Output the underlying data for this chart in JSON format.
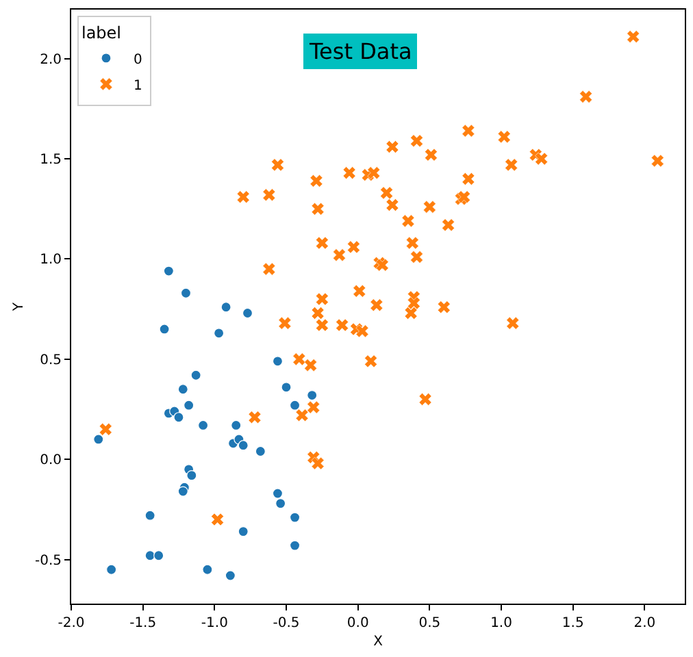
{
  "chart_data": {
    "type": "scatter",
    "title": "Test Data",
    "xlabel": "X",
    "ylabel": "Y",
    "legend_title": "label",
    "legend": "top left",
    "xlim": [
      -2.0,
      2.28
    ],
    "ylim": [
      -0.72,
      2.245
    ],
    "xticks": [
      {
        "value": -2,
        "label": "-2.0"
      },
      {
        "value": -1.5,
        "label": "-1.5"
      },
      {
        "value": -1,
        "label": "-1.0"
      },
      {
        "value": -0.5,
        "label": "-0.5"
      },
      {
        "value": 0,
        "label": "0.0"
      },
      {
        "value": 0.5,
        "label": "0.5"
      },
      {
        "value": 1,
        "label": "1.0"
      },
      {
        "value": 1.5,
        "label": "1.5"
      },
      {
        "value": 2,
        "label": "2.0"
      }
    ],
    "yticks": [
      {
        "value": -0.5,
        "label": "-0.5"
      },
      {
        "value": 0,
        "label": "0.0"
      },
      {
        "value": 0.5,
        "label": "0.5"
      },
      {
        "value": 1,
        "label": "1.0"
      },
      {
        "value": 1.5,
        "label": "1.5"
      },
      {
        "value": 2,
        "label": "2.0"
      }
    ],
    "series": [
      {
        "name": "0",
        "color": "#1f77b4",
        "marker": "circle",
        "x": [
          -1.32,
          -1.2,
          -0.92,
          -0.77,
          -1.35,
          -0.97,
          -0.56,
          -1.13,
          -1.22,
          -0.5,
          -0.32,
          -1.18,
          -0.44,
          -1.32,
          -1.28,
          -1.25,
          -1.08,
          -0.85,
          -1.81,
          -0.87,
          -0.83,
          -0.8,
          -0.68,
          -1.18,
          -1.16,
          -1.21,
          -1.22,
          -0.56,
          -0.54,
          -1.45,
          -0.44,
          -0.8,
          -0.44,
          -1.45,
          -1.39,
          -1.72,
          -1.05,
          -0.89
        ],
        "values": [
          0.94,
          0.83,
          0.76,
          0.73,
          0.65,
          0.63,
          0.49,
          0.42,
          0.35,
          0.36,
          0.32,
          0.27,
          0.27,
          0.23,
          0.24,
          0.21,
          0.17,
          0.17,
          0.1,
          0.08,
          0.1,
          0.07,
          0.04,
          -0.05,
          -0.08,
          -0.14,
          -0.16,
          -0.17,
          -0.22,
          -0.28,
          -0.29,
          -0.36,
          -0.43,
          -0.48,
          -0.48,
          -0.55,
          -0.55,
          -0.58
        ]
      },
      {
        "name": "1",
        "color": "#ff7f0e",
        "marker": "cross",
        "x": [
          1.92,
          1.59,
          0.77,
          1.02,
          0.24,
          0.41,
          0.51,
          1.07,
          -0.56,
          -0.06,
          0.07,
          0.11,
          -0.29,
          0.77,
          1.24,
          1.28,
          2.09,
          0.2,
          -0.8,
          -0.62,
          0.24,
          0.5,
          0.72,
          0.74,
          -0.28,
          0.35,
          0.63,
          -0.25,
          -0.03,
          -0.13,
          0.38,
          0.41,
          0.15,
          0.17,
          -0.62,
          -0.25,
          0.01,
          0.13,
          0.39,
          0.39,
          0.37,
          0.6,
          -0.28,
          -0.51,
          -0.25,
          -0.11,
          -0.01,
          0.03,
          1.08,
          -0.41,
          -0.33,
          0.09,
          0.47,
          -0.39,
          -0.31,
          -0.72,
          -1.76,
          -0.31,
          -0.28,
          -0.98
        ],
        "values": [
          2.11,
          1.81,
          1.64,
          1.61,
          1.56,
          1.59,
          1.52,
          1.47,
          1.47,
          1.43,
          1.42,
          1.43,
          1.39,
          1.4,
          1.52,
          1.5,
          1.49,
          1.33,
          1.31,
          1.32,
          1.27,
          1.26,
          1.3,
          1.31,
          1.25,
          1.19,
          1.17,
          1.08,
          1.06,
          1.02,
          1.08,
          1.01,
          0.98,
          0.97,
          0.95,
          0.8,
          0.84,
          0.77,
          0.81,
          0.78,
          0.73,
          0.76,
          0.73,
          0.68,
          0.67,
          0.67,
          0.65,
          0.64,
          0.68,
          0.5,
          0.47,
          0.49,
          0.3,
          0.22,
          0.26,
          0.21,
          0.15,
          0.01,
          -0.02,
          -0.3
        ]
      }
    ]
  }
}
